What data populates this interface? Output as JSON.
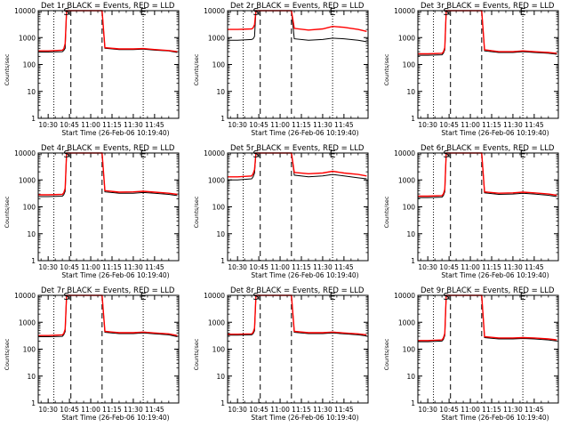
{
  "figure": {
    "colors": {
      "background": "#ffffff",
      "events": "#000000",
      "lld": "#ff0000",
      "axes": "#000000"
    }
  },
  "chart_data": [
    {
      "type": "line",
      "title": "Det 1r BLACK = Events, RED = LLD",
      "xlabel": "Start Time (26-Feb-06 10:19:40)",
      "ylabel": "Counts/sec",
      "xlim": [
        "10:23",
        "12:02"
      ],
      "ylim": [
        1,
        10000
      ],
      "yscale": "log",
      "xticks": [
        "10:30",
        "10:45",
        "11:00",
        "11:15",
        "11:30",
        "11:45"
      ],
      "yticks": [
        "1",
        "10",
        "100",
        "1000",
        "10000"
      ],
      "markers": [
        {
          "label": "S",
          "x": "10:43"
        },
        {
          "label": "E",
          "x": "11:37"
        }
      ],
      "vlines_dotted": [
        "10:34",
        "11:37"
      ],
      "vlines_dashed": [
        "10:46",
        "11:08"
      ],
      "x": [
        "10:23",
        "10:30",
        "10:40",
        "10:41",
        "10:42",
        "10:43",
        "10:46",
        "10:47",
        "10:53",
        "11:03",
        "11:07",
        "11:08",
        "11:10",
        "11:20",
        "11:30",
        "11:37",
        "11:45",
        "11:55",
        "12:01"
      ],
      "series": [
        {
          "name": "Events",
          "color": "#000000",
          "values": [
            290,
            290,
            300,
            330,
            400,
            10000,
            10000,
            10000,
            10000,
            10000,
            10000,
            10000,
            400,
            360,
            360,
            370,
            340,
            320,
            280
          ]
        },
        {
          "name": "LLD",
          "color": "#ff0000",
          "values": [
            320,
            320,
            340,
            380,
            600,
            10000,
            10000,
            10000,
            10000,
            10000,
            10000,
            10000,
            420,
            380,
            380,
            390,
            360,
            330,
            300
          ]
        }
      ]
    },
    {
      "type": "line",
      "title": "Det 2r BLACK = Events, RED = LLD",
      "xlabel": "Start Time (26-Feb-06 10:19:40)",
      "ylabel": "Counts/sec",
      "xlim": [
        "10:23",
        "12:02"
      ],
      "ylim": [
        1,
        10000
      ],
      "yscale": "log",
      "xticks": [
        "10:30",
        "10:45",
        "11:00",
        "11:15",
        "11:30",
        "11:45"
      ],
      "yticks": [
        "1",
        "10",
        "100",
        "1000",
        "10000"
      ],
      "markers": [
        {
          "label": "S",
          "x": "10:43"
        },
        {
          "label": "E",
          "x": "11:37"
        }
      ],
      "vlines_dotted": [
        "10:34",
        "11:37"
      ],
      "vlines_dashed": [
        "10:46",
        "11:08"
      ],
      "x": [
        "10:23",
        "10:30",
        "10:40",
        "10:41",
        "10:42",
        "10:43",
        "10:46",
        "10:47",
        "10:53",
        "11:03",
        "11:07",
        "11:08",
        "11:10",
        "11:20",
        "11:30",
        "11:37",
        "11:45",
        "11:55",
        "12:01"
      ],
      "series": [
        {
          "name": "Events",
          "color": "#000000",
          "values": [
            800,
            800,
            850,
            900,
            1100,
            10000,
            10000,
            10000,
            10000,
            10000,
            10000,
            10000,
            900,
            800,
            850,
            950,
            900,
            800,
            700
          ]
        },
        {
          "name": "LLD",
          "color": "#ff0000",
          "values": [
            2000,
            2000,
            2100,
            2300,
            3000,
            10000,
            10000,
            10000,
            10000,
            10000,
            10000,
            10000,
            2200,
            1900,
            2100,
            2600,
            2400,
            2000,
            1700
          ]
        }
      ]
    },
    {
      "type": "line",
      "title": "Det 3r BLACK = Events, RED = LLD",
      "xlabel": "Start Time (26-Feb-06 10:19:40)",
      "ylabel": "Counts/sec",
      "xlim": [
        "10:23",
        "12:02"
      ],
      "ylim": [
        1,
        10000
      ],
      "yscale": "log",
      "xticks": [
        "10:30",
        "10:45",
        "11:00",
        "11:15",
        "11:30",
        "11:45"
      ],
      "yticks": [
        "1",
        "10",
        "100",
        "1000",
        "10000"
      ],
      "markers": [
        {
          "label": "S",
          "x": "10:43"
        },
        {
          "label": "E",
          "x": "11:37"
        }
      ],
      "vlines_dotted": [
        "10:34",
        "11:37"
      ],
      "vlines_dashed": [
        "10:46",
        "11:08"
      ],
      "x": [
        "10:23",
        "10:30",
        "10:40",
        "10:41",
        "10:42",
        "10:43",
        "10:46",
        "10:47",
        "10:53",
        "11:03",
        "11:07",
        "11:08",
        "11:10",
        "11:20",
        "11:30",
        "11:37",
        "11:45",
        "11:55",
        "12:01"
      ],
      "series": [
        {
          "name": "Events",
          "color": "#000000",
          "values": [
            220,
            220,
            230,
            260,
            350,
            10000,
            10000,
            10000,
            10000,
            10000,
            10000,
            10000,
            320,
            280,
            280,
            300,
            280,
            260,
            240
          ]
        },
        {
          "name": "LLD",
          "color": "#ff0000",
          "values": [
            250,
            250,
            260,
            290,
            420,
            10000,
            10000,
            10000,
            10000,
            10000,
            10000,
            10000,
            350,
            300,
            300,
            320,
            300,
            280,
            260
          ]
        }
      ]
    },
    {
      "type": "line",
      "title": "Det 4r BLACK = Events, RED = LLD",
      "xlabel": "Start Time (26-Feb-06 10:19:40)",
      "ylabel": "Counts/sec",
      "xlim": [
        "10:23",
        "12:02"
      ],
      "ylim": [
        1,
        10000
      ],
      "yscale": "log",
      "xticks": [
        "10:30",
        "10:45",
        "11:00",
        "11:15",
        "11:30",
        "11:45"
      ],
      "yticks": [
        "1",
        "10",
        "100",
        "1000",
        "10000"
      ],
      "markers": [
        {
          "label": "S",
          "x": "10:43"
        },
        {
          "label": "E",
          "x": "11:37"
        }
      ],
      "vlines_dotted": [
        "10:34",
        "11:37"
      ],
      "vlines_dashed": [
        "10:46",
        "11:08"
      ],
      "x": [
        "10:23",
        "10:30",
        "10:40",
        "10:41",
        "10:42",
        "10:43",
        "10:46",
        "10:47",
        "10:53",
        "11:03",
        "11:07",
        "11:08",
        "11:10",
        "11:20",
        "11:30",
        "11:37",
        "11:45",
        "11:55",
        "12:01"
      ],
      "series": [
        {
          "name": "Events",
          "color": "#000000",
          "values": [
            240,
            240,
            250,
            280,
            380,
            10000,
            10000,
            10000,
            10000,
            10000,
            10000,
            10000,
            360,
            320,
            320,
            340,
            320,
            290,
            260
          ]
        },
        {
          "name": "LLD",
          "color": "#ff0000",
          "values": [
            280,
            280,
            290,
            330,
            480,
            10000,
            10000,
            10000,
            10000,
            10000,
            10000,
            10000,
            400,
            350,
            360,
            380,
            350,
            320,
            290
          ]
        }
      ]
    },
    {
      "type": "line",
      "title": "Det 5r BLACK = Events, RED = LLD",
      "xlabel": "Start Time (26-Feb-06 10:19:40)",
      "ylabel": "Counts/sec",
      "xlim": [
        "10:23",
        "12:02"
      ],
      "ylim": [
        1,
        10000
      ],
      "yscale": "log",
      "xticks": [
        "10:30",
        "10:45",
        "11:00",
        "11:15",
        "11:30",
        "11:45"
      ],
      "yticks": [
        "1",
        "10",
        "100",
        "1000",
        "10000"
      ],
      "markers": [
        {
          "label": "S",
          "x": "10:43"
        },
        {
          "label": "E",
          "x": "11:37"
        }
      ],
      "vlines_dotted": [
        "10:34",
        "11:37"
      ],
      "vlines_dashed": [
        "10:46",
        "11:08"
      ],
      "x": [
        "10:23",
        "10:30",
        "10:40",
        "10:41",
        "10:42",
        "10:43",
        "10:46",
        "10:47",
        "10:53",
        "11:03",
        "11:07",
        "11:08",
        "11:10",
        "11:20",
        "11:30",
        "11:37",
        "11:45",
        "11:55",
        "12:01"
      ],
      "series": [
        {
          "name": "Events",
          "color": "#000000",
          "values": [
            1000,
            1000,
            1100,
            1300,
            1800,
            10000,
            10000,
            10000,
            10000,
            10000,
            10000,
            10000,
            1500,
            1300,
            1400,
            1600,
            1400,
            1200,
            1100
          ]
        },
        {
          "name": "LLD",
          "color": "#ff0000",
          "values": [
            1300,
            1300,
            1400,
            1700,
            2400,
            10000,
            10000,
            10000,
            10000,
            10000,
            10000,
            10000,
            1900,
            1700,
            1800,
            2100,
            1800,
            1600,
            1400
          ]
        }
      ]
    },
    {
      "type": "line",
      "title": "Det 6r BLACK = Events, RED = LLD",
      "xlabel": "Start Time (26-Feb-06 10:19:40)",
      "ylabel": "Counts/sec",
      "xlim": [
        "10:23",
        "12:02"
      ],
      "ylim": [
        1,
        10000
      ],
      "yscale": "log",
      "xticks": [
        "10:30",
        "10:45",
        "11:00",
        "11:15",
        "11:30",
        "11:45"
      ],
      "yticks": [
        "1",
        "10",
        "100",
        "1000",
        "10000"
      ],
      "markers": [
        {
          "label": "S",
          "x": "10:43"
        },
        {
          "label": "E",
          "x": "11:37"
        }
      ],
      "vlines_dotted": [
        "10:34",
        "11:37"
      ],
      "vlines_dashed": [
        "10:46",
        "11:08"
      ],
      "x": [
        "10:23",
        "10:30",
        "10:40",
        "10:41",
        "10:42",
        "10:43",
        "10:46",
        "10:47",
        "10:53",
        "11:03",
        "11:07",
        "11:08",
        "11:10",
        "11:20",
        "11:30",
        "11:37",
        "11:45",
        "11:55",
        "12:01"
      ],
      "series": [
        {
          "name": "Events",
          "color": "#000000",
          "values": [
            220,
            220,
            230,
            260,
            360,
            10000,
            10000,
            10000,
            10000,
            10000,
            10000,
            10000,
            330,
            290,
            300,
            320,
            300,
            270,
            240
          ]
        },
        {
          "name": "LLD",
          "color": "#ff0000",
          "values": [
            250,
            250,
            260,
            300,
            440,
            10000,
            10000,
            10000,
            10000,
            10000,
            10000,
            10000,
            360,
            320,
            330,
            350,
            330,
            300,
            270
          ]
        }
      ]
    },
    {
      "type": "line",
      "title": "Det 7r BLACK = Events, RED = LLD",
      "xlabel": "Start Time (26-Feb-06 10:19:40)",
      "ylabel": "Counts/sec",
      "xlim": [
        "10:23",
        "12:02"
      ],
      "ylim": [
        1,
        10000
      ],
      "yscale": "log",
      "xticks": [
        "10:30",
        "10:45",
        "11:00",
        "11:15",
        "11:30",
        "11:45"
      ],
      "yticks": [
        "1",
        "10",
        "100",
        "1000",
        "10000"
      ],
      "markers": [
        {
          "label": "S",
          "x": "10:43"
        },
        {
          "label": "E",
          "x": "11:37"
        }
      ],
      "vlines_dotted": [
        "10:34",
        "11:37"
      ],
      "vlines_dashed": [
        "10:46",
        "11:08"
      ],
      "x": [
        "10:23",
        "10:30",
        "10:40",
        "10:41",
        "10:42",
        "10:43",
        "10:46",
        "10:47",
        "10:53",
        "11:03",
        "11:07",
        "11:08",
        "11:10",
        "11:20",
        "11:30",
        "11:37",
        "11:45",
        "11:55",
        "12:01"
      ],
      "series": [
        {
          "name": "Events",
          "color": "#000000",
          "values": [
            290,
            290,
            300,
            340,
            450,
            10000,
            10000,
            10000,
            10000,
            10000,
            10000,
            10000,
            420,
            380,
            380,
            400,
            370,
            340,
            290
          ]
        },
        {
          "name": "LLD",
          "color": "#ff0000",
          "values": [
            320,
            320,
            340,
            380,
            550,
            10000,
            10000,
            10000,
            10000,
            10000,
            10000,
            10000,
            460,
            410,
            410,
            430,
            400,
            370,
            320
          ]
        }
      ]
    },
    {
      "type": "line",
      "title": "Det 8r BLACK = Events, RED = LLD",
      "xlabel": "Start Time (26-Feb-06 10:19:40)",
      "ylabel": "Counts/sec",
      "xlim": [
        "10:23",
        "12:02"
      ],
      "ylim": [
        1,
        10000
      ],
      "yscale": "log",
      "xticks": [
        "10:30",
        "10:45",
        "11:00",
        "11:15",
        "11:30",
        "11:45"
      ],
      "yticks": [
        "1",
        "10",
        "100",
        "1000",
        "10000"
      ],
      "markers": [
        {
          "label": "S",
          "x": "10:43"
        },
        {
          "label": "E",
          "x": "11:37"
        }
      ],
      "vlines_dotted": [
        "10:34",
        "11:37"
      ],
      "vlines_dashed": [
        "10:46",
        "11:08"
      ],
      "x": [
        "10:23",
        "10:30",
        "10:40",
        "10:41",
        "10:42",
        "10:43",
        "10:46",
        "10:47",
        "10:53",
        "11:03",
        "11:07",
        "11:08",
        "11:10",
        "11:20",
        "11:30",
        "11:37",
        "11:45",
        "11:55",
        "12:01"
      ],
      "series": [
        {
          "name": "Events",
          "color": "#000000",
          "values": [
            330,
            330,
            340,
            380,
            480,
            10000,
            10000,
            10000,
            10000,
            10000,
            10000,
            10000,
            420,
            380,
            380,
            400,
            370,
            340,
            310
          ]
        },
        {
          "name": "LLD",
          "color": "#ff0000",
          "values": [
            360,
            360,
            370,
            420,
            600,
            10000,
            10000,
            10000,
            10000,
            10000,
            10000,
            10000,
            460,
            410,
            410,
            430,
            400,
            370,
            340
          ]
        }
      ]
    },
    {
      "type": "line",
      "title": "Det 9r BLACK = Events, RED = LLD",
      "xlabel": "Start Time (26-Feb-06 10:19:40)",
      "ylabel": "Counts/sec",
      "xlim": [
        "10:23",
        "12:02"
      ],
      "ylim": [
        1,
        10000
      ],
      "yscale": "log",
      "xticks": [
        "10:30",
        "10:45",
        "11:00",
        "11:15",
        "11:30",
        "11:45"
      ],
      "yticks": [
        "1",
        "10",
        "100",
        "1000",
        "10000"
      ],
      "markers": [
        {
          "label": "S",
          "x": "10:43"
        },
        {
          "label": "E",
          "x": "11:37"
        }
      ],
      "vlines_dotted": [
        "10:34",
        "11:37"
      ],
      "vlines_dashed": [
        "10:46",
        "11:08"
      ],
      "x": [
        "10:23",
        "10:30",
        "10:40",
        "10:41",
        "10:42",
        "10:43",
        "10:46",
        "10:47",
        "10:53",
        "11:03",
        "11:07",
        "11:08",
        "11:10",
        "11:20",
        "11:30",
        "11:37",
        "11:45",
        "11:55",
        "12:01"
      ],
      "series": [
        {
          "name": "Events",
          "color": "#000000",
          "values": [
            190,
            190,
            200,
            230,
            320,
            10000,
            10000,
            10000,
            10000,
            10000,
            10000,
            10000,
            270,
            240,
            240,
            250,
            240,
            220,
            200
          ]
        },
        {
          "name": "LLD",
          "color": "#ff0000",
          "values": [
            210,
            210,
            220,
            260,
            380,
            10000,
            10000,
            10000,
            10000,
            10000,
            10000,
            10000,
            290,
            260,
            260,
            270,
            260,
            240,
            220
          ]
        }
      ]
    }
  ]
}
